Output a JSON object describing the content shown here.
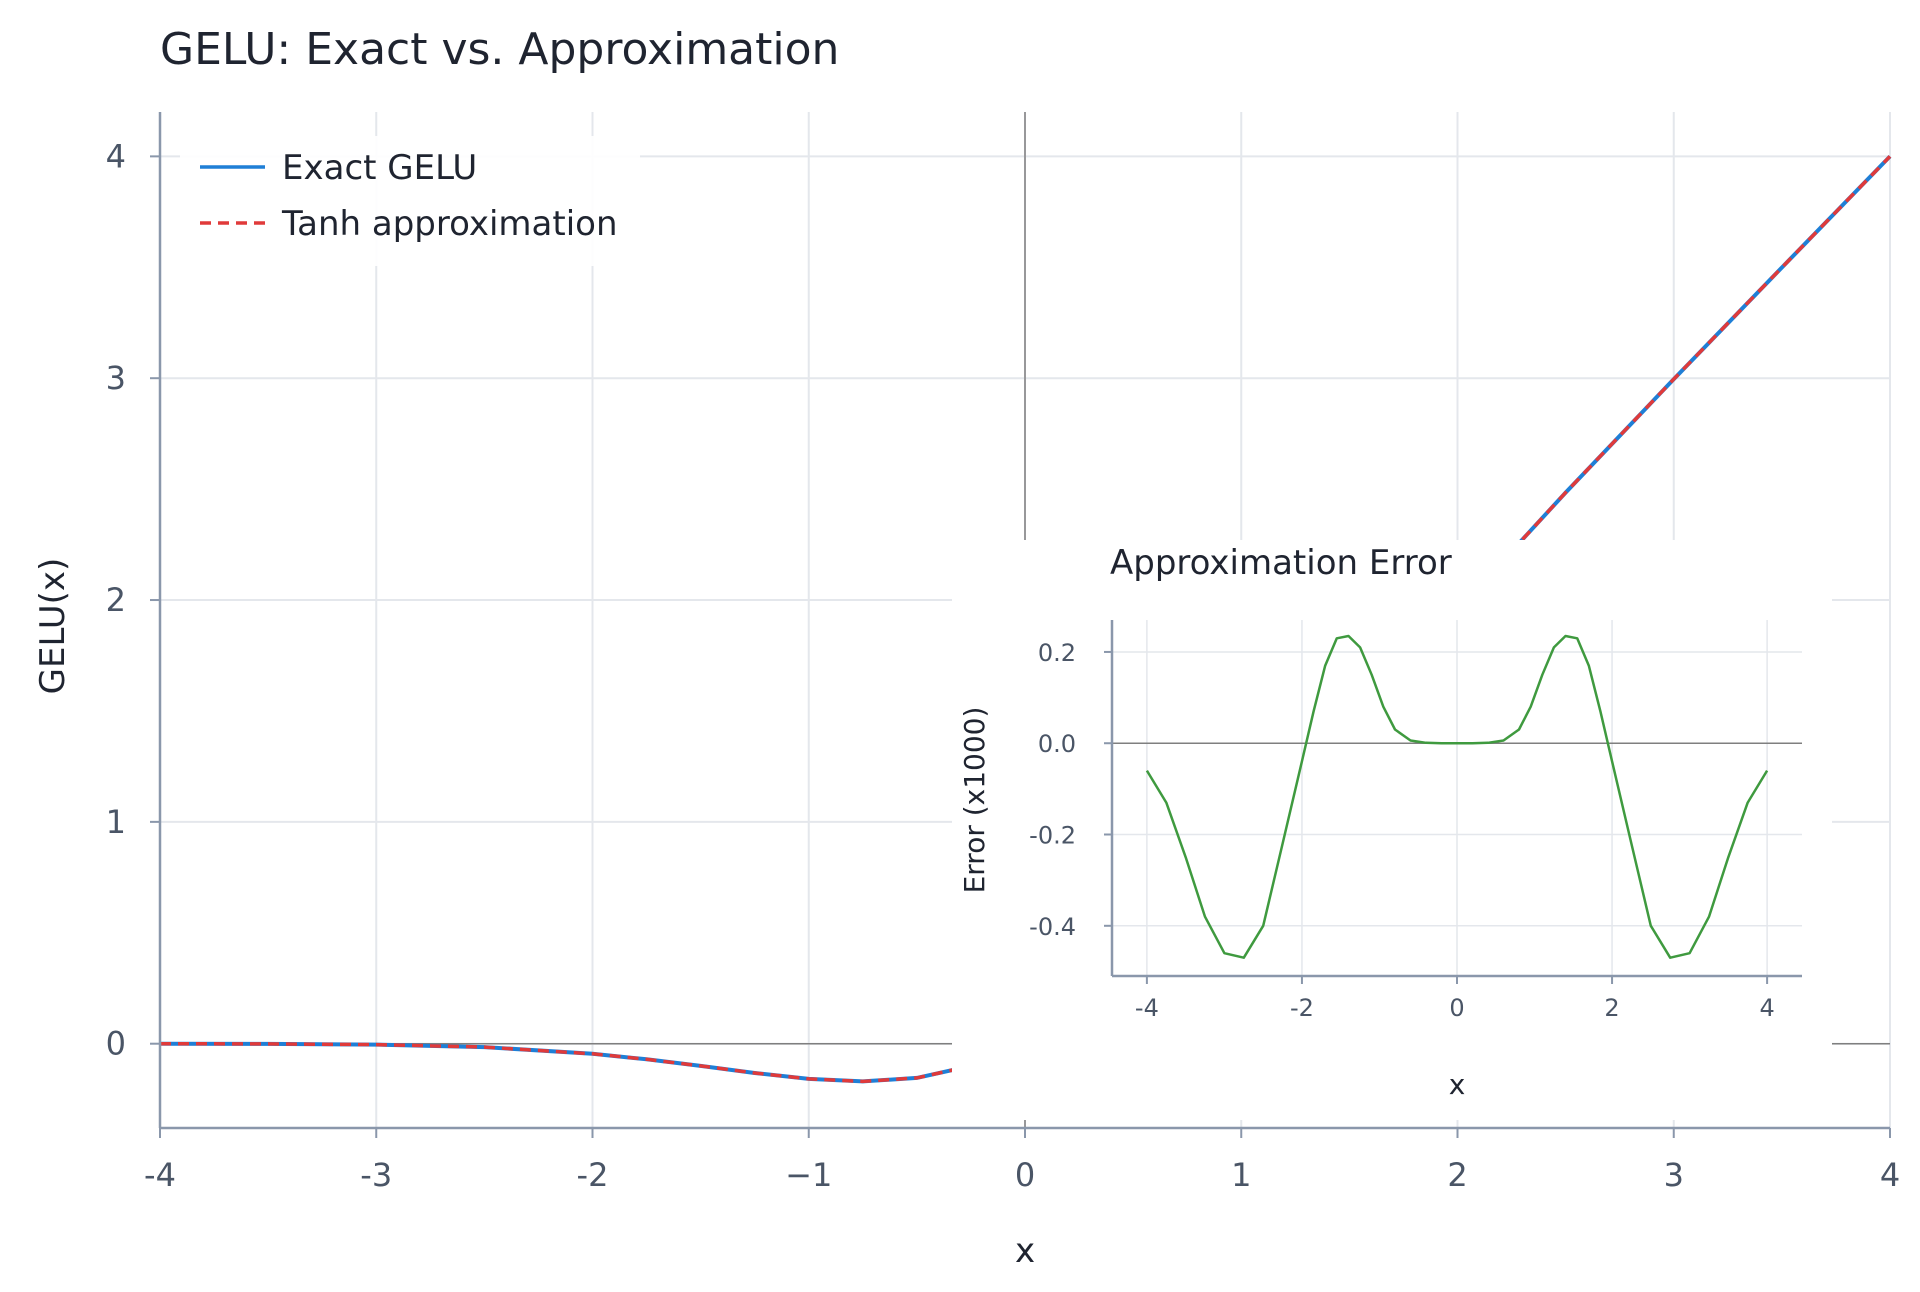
{
  "colors": {
    "exact": "#1f7fd6",
    "approx": "#e03a3a",
    "error": "#3f9a3f",
    "grid": "#e4e7ec",
    "axis": "#8a97ab",
    "zero": "#7f7f7f"
  },
  "chart_data": [
    {
      "type": "line",
      "title": "GELU: Exact vs. Approximation",
      "xlabel": "x",
      "ylabel": "GELU(x)",
      "xlim": [
        -4,
        4
      ],
      "ylim": [
        -0.38,
        4.2
      ],
      "xticks": [
        -4,
        -3,
        -2,
        -1,
        0,
        1,
        2,
        3,
        4
      ],
      "xtick_labels": [
        "-4",
        "-3",
        "-2",
        "−1",
        "0",
        "1",
        "2",
        "3",
        "4"
      ],
      "yticks": [
        0,
        1,
        2,
        3,
        4
      ],
      "ytick_labels": [
        "0",
        "1",
        "2",
        "3",
        "4"
      ],
      "grid": true,
      "legend": "top-left",
      "x": [
        -4,
        -3.5,
        -3,
        -2.5,
        -2,
        -1.75,
        -1.5,
        -1.25,
        -1,
        -0.75,
        -0.5,
        -0.25,
        0,
        0.25,
        0.5,
        0.75,
        1,
        1.5,
        2,
        2.5,
        3,
        3.5,
        4
      ],
      "series": [
        {
          "name": "Exact GELU",
          "style": "solid",
          "values": [
            -0.0001,
            -0.0008,
            -0.004,
            -0.0155,
            -0.0455,
            -0.0701,
            -0.1002,
            -0.132,
            -0.1587,
            -0.17,
            -0.1543,
            -0.1003,
            0,
            0.1497,
            0.3457,
            0.58,
            0.8413,
            1.3998,
            1.9545,
            2.4845,
            2.996,
            3.4992,
            3.9999
          ]
        },
        {
          "name": "Tanh approximation",
          "style": "dashed",
          "values": [
            -0.0001,
            -0.0008,
            -0.004,
            -0.0155,
            -0.0455,
            -0.0701,
            -0.1002,
            -0.132,
            -0.1588,
            -0.17,
            -0.1543,
            -0.1003,
            0,
            0.1497,
            0.3457,
            0.58,
            0.8412,
            1.3998,
            1.9546,
            2.4845,
            2.996,
            3.4992,
            3.9999
          ]
        }
      ]
    },
    {
      "type": "line",
      "title": "Approximation Error",
      "xlabel": "x",
      "ylabel": "Error (x1000)",
      "xlim": [
        -4.45,
        4.45
      ],
      "ylim": [
        -0.51,
        0.27
      ],
      "xticks": [
        -4,
        -2,
        0,
        2,
        4
      ],
      "xtick_labels": [
        "-4",
        "-2",
        "0",
        "2",
        "4"
      ],
      "yticks": [
        0.2,
        0.0,
        -0.2,
        -0.4
      ],
      "ytick_labels": [
        "0.2",
        "0.0",
        "-0.2",
        "-0.4"
      ],
      "grid": true,
      "x": [
        -4,
        -3.75,
        -3.5,
        -3.25,
        -3,
        -2.75,
        -2.5,
        -2.25,
        -2,
        -1.85,
        -1.7,
        -1.55,
        -1.4,
        -1.25,
        -1.1,
        -0.95,
        -0.8,
        -0.6,
        -0.4,
        -0.2,
        0,
        0.2,
        0.4,
        0.6,
        0.8,
        0.95,
        1.1,
        1.25,
        1.4,
        1.55,
        1.7,
        1.85,
        2,
        2.25,
        2.5,
        2.75,
        3,
        3.25,
        3.5,
        3.75,
        4
      ],
      "series": [
        {
          "name": "",
          "values": [
            -0.06,
            -0.13,
            -0.25,
            -0.38,
            -0.46,
            -0.47,
            -0.4,
            -0.22,
            -0.04,
            0.07,
            0.17,
            0.23,
            0.235,
            0.21,
            0.15,
            0.08,
            0.03,
            0.006,
            0.001,
            0.0,
            0.0,
            0.0,
            0.001,
            0.006,
            0.03,
            0.08,
            0.15,
            0.21,
            0.235,
            0.23,
            0.17,
            0.07,
            -0.04,
            -0.22,
            -0.4,
            -0.47,
            -0.46,
            -0.38,
            -0.25,
            -0.13,
            -0.06
          ]
        }
      ]
    }
  ]
}
